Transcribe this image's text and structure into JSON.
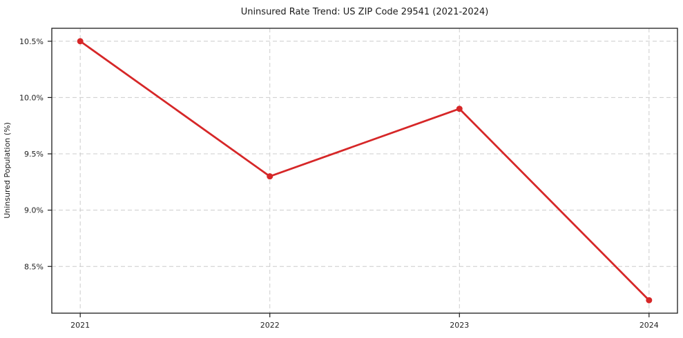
{
  "figure": {
    "background": "#ffffff"
  },
  "chart_data": {
    "type": "line",
    "title": "Uninsured Rate Trend: US ZIP Code 29541 (2021-2024)",
    "ylabel": "Uninsured Population (%)",
    "xlabel": "",
    "x": [
      2021,
      2022,
      2023,
      2024
    ],
    "values": [
      10.5,
      9.3,
      9.9,
      8.2
    ],
    "xticks": [
      {
        "value": 2021,
        "label": "2021"
      },
      {
        "value": 2022,
        "label": "2022"
      },
      {
        "value": 2023,
        "label": "2023"
      },
      {
        "value": 2024,
        "label": "2024"
      }
    ],
    "yticks": [
      {
        "value": 8.5,
        "label": "8.5%"
      },
      {
        "value": 9.0,
        "label": "9.0%"
      },
      {
        "value": 9.5,
        "label": "9.5%"
      },
      {
        "value": 10.0,
        "label": "10.0%"
      },
      {
        "value": 10.5,
        "label": "10.5%"
      }
    ],
    "xlim": [
      2020.85,
      2024.15
    ],
    "ylim": [
      8.085,
      10.615
    ],
    "grid": "dashed-both-axes",
    "legend_position": "none",
    "marker": "circle",
    "line_color": "#d62728",
    "grid_color": "#cccccc",
    "spine_color": "#1a1a1a",
    "text_color": "#1a1a1a"
  }
}
